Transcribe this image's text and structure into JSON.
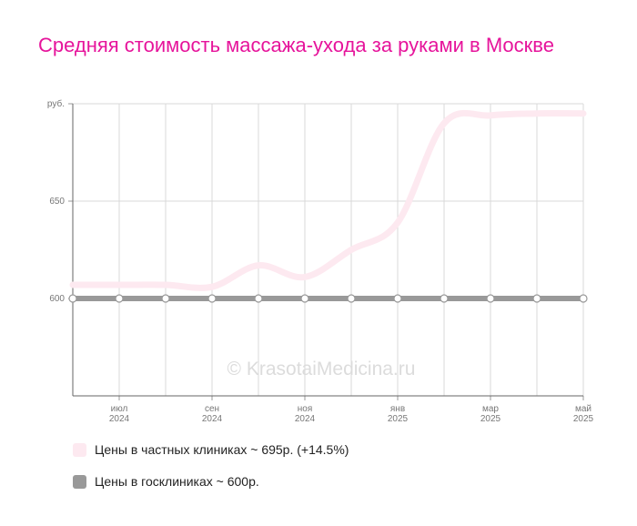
{
  "chart_data": {
    "type": "line",
    "title": "Средняя стоимость массажа-ухода за руками в Москве",
    "watermark": "© KrasotaiMedicina.ru",
    "categories": [
      null,
      "июл 2024",
      null,
      "сен 2024",
      null,
      "ноя 2024",
      null,
      "янв 2025",
      null,
      "мар 2025",
      null,
      "май 2025"
    ],
    "series": [
      {
        "name": "Цены в частных клиниках ~ 695р. (+14.5%)",
        "color": "#fde9f0",
        "values": [
          607,
          607,
          607,
          606,
          617,
          611,
          625,
          639,
          690,
          694,
          695,
          695
        ]
      },
      {
        "name": "Цены в госклиниках ~ 600р.",
        "color": "#999999",
        "values": [
          600,
          600,
          600,
          600,
          600,
          600,
          600,
          600,
          600,
          600,
          600,
          600
        ]
      }
    ],
    "ylim": [
      550,
      700
    ],
    "yticks": [
      600,
      650,
      {
        "value": 700,
        "label": "руб."
      }
    ],
    "grid": true
  }
}
